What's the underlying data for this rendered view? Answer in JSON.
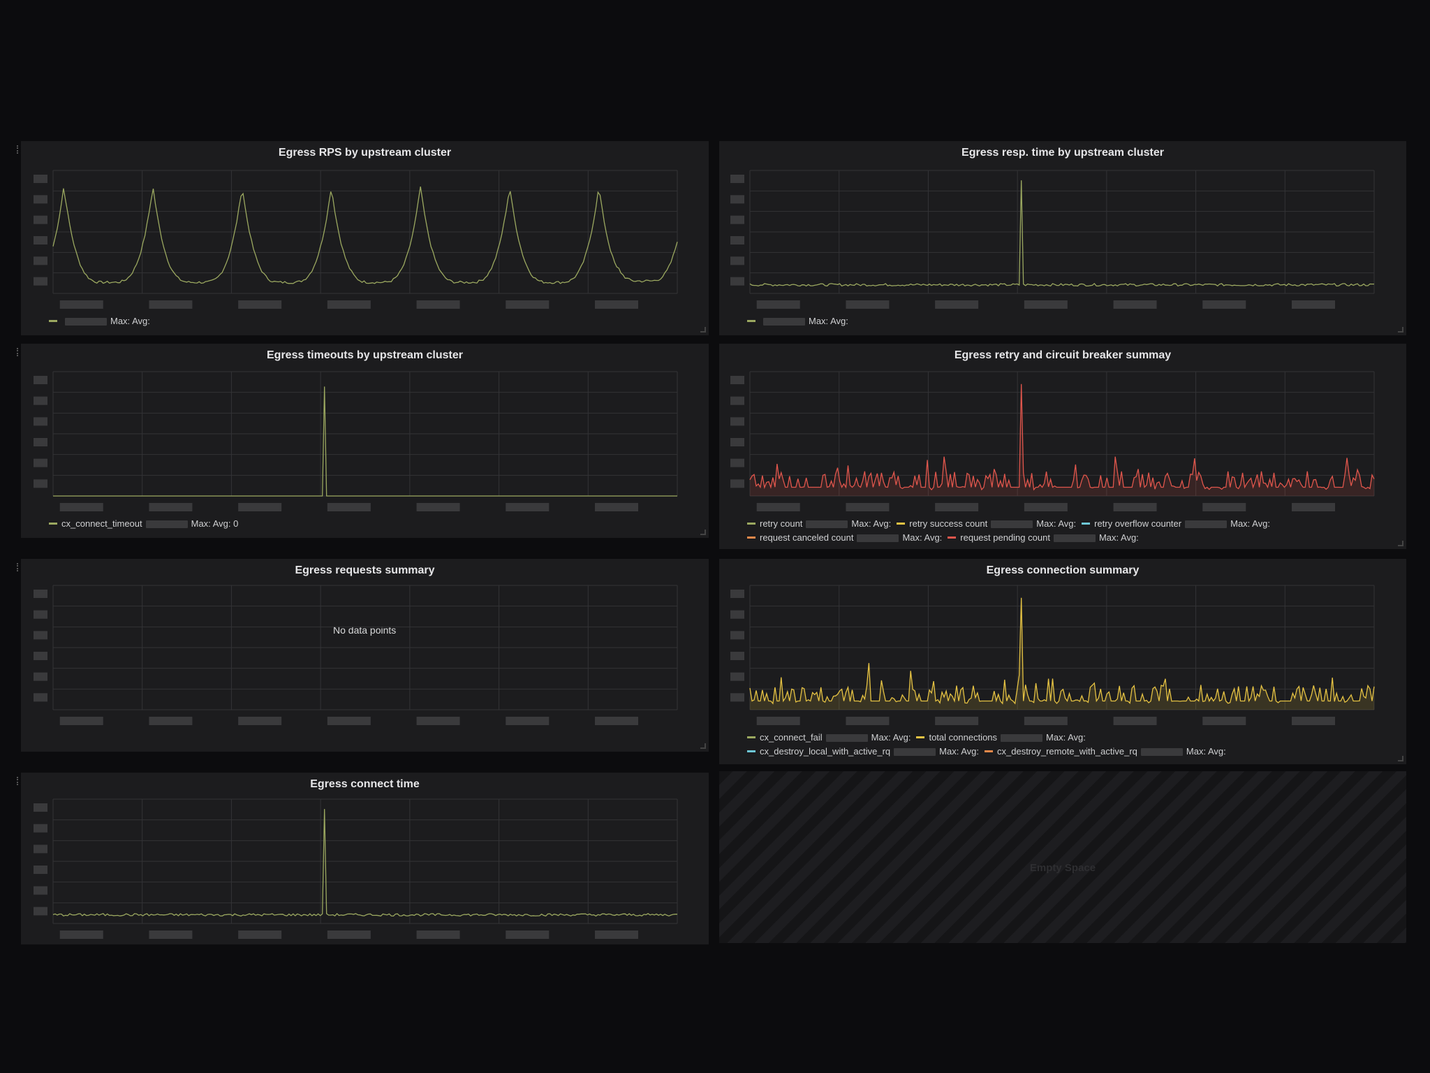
{
  "panels": [
    {
      "id": "p1",
      "title": "Egress RPS by upstream cluster",
      "legend": [
        [
          {
            "color": "#9ba860",
            "name": "",
            "stats": "Max:  Avg:"
          }
        ]
      ]
    },
    {
      "id": "p2",
      "title": "Egress resp. time by upstream cluster",
      "legend": [
        [
          {
            "color": "#9ba860",
            "name": "",
            "stats": "Max:  Avg:"
          }
        ]
      ]
    },
    {
      "id": "p3",
      "title": "Egress timeouts by upstream cluster",
      "legend": [
        [
          {
            "color": "#9ba860",
            "name": "cx_connect_timeout",
            "stats": "Max:  Avg: 0"
          }
        ]
      ]
    },
    {
      "id": "p4",
      "title": "Egress retry and circuit breaker summay",
      "legend": [
        [
          {
            "color": "#9ba860",
            "name": "retry count",
            "stats": "Max:  Avg:"
          },
          {
            "color": "#e5c243",
            "name": "retry success count",
            "stats": "Max:  Avg:"
          },
          {
            "color": "#6ec7d6",
            "name": "retry overflow counter",
            "stats": "Max:  Avg:"
          }
        ],
        [
          {
            "color": "#e5884a",
            "name": "request canceled count",
            "stats": "Max:  Avg:"
          },
          {
            "color": "#e0564c",
            "name": "request pending count",
            "stats": "Max:  Avg:"
          }
        ]
      ]
    },
    {
      "id": "p5",
      "title": "Egress requests summary",
      "nodata": "No data points",
      "legend": []
    },
    {
      "id": "p6",
      "title": "Egress connection summary",
      "legend": [
        [
          {
            "color": "#9ba860",
            "name": "cx_connect_fail",
            "stats": "Max:  Avg:"
          },
          {
            "color": "#e5c243",
            "name": "total connections",
            "stats": "Max:  Avg:"
          }
        ],
        [
          {
            "color": "#6ec7d6",
            "name": "cx_destroy_local_with_active_rq",
            "stats": "Max:  Avg:"
          },
          {
            "color": "#e5884a",
            "name": "cx_destroy_remote_with_active_rq",
            "stats": "Max:  Avg:"
          }
        ]
      ]
    },
    {
      "id": "p7",
      "title": "Egress connect time",
      "legend": []
    }
  ],
  "empty_space": {
    "label": "Empty Space"
  },
  "colors": {
    "background": "#0c0c0e",
    "panel": "#1c1c1e",
    "grid": "#333336",
    "green": "#9ba860",
    "red": "#e0564c",
    "orange": "#e5884a",
    "yellow": "#e5c243",
    "cyan": "#6ec7d6"
  },
  "chart_data": [
    {
      "panel": "p1",
      "type": "line",
      "series": [
        {
          "color": "#9ba860",
          "pattern": "diurnal peaks",
          "peaks": 7
        }
      ]
    },
    {
      "panel": "p2",
      "type": "line",
      "series": [
        {
          "color": "#9ba860",
          "pattern": "flat with one spike"
        }
      ]
    },
    {
      "panel": "p3",
      "type": "line",
      "series": [
        {
          "color": "#9ba860",
          "pattern": "single spike"
        }
      ]
    },
    {
      "panel": "p4",
      "type": "area",
      "series": [
        {
          "color": "#e0564c",
          "pattern": "noisy with one spike"
        }
      ]
    },
    {
      "panel": "p5",
      "type": "line",
      "series": []
    },
    {
      "panel": "p6",
      "type": "area",
      "series": [
        {
          "color": "#e5c243",
          "pattern": "noisy with one spike"
        }
      ]
    },
    {
      "panel": "p7",
      "type": "line",
      "series": [
        {
          "color": "#9ba860",
          "pattern": "flat with one spike"
        }
      ]
    }
  ]
}
